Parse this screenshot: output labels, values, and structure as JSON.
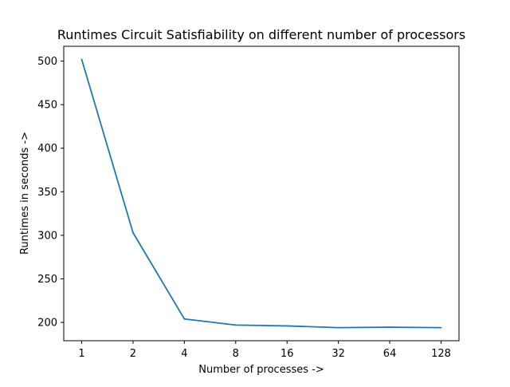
{
  "chart_data": {
    "type": "line",
    "title": "Runtimes Circuit Satisfiability on different number of processors",
    "xlabel": "Number of processes ->",
    "ylabel": "Runtimes in seconds ->",
    "categories": [
      "1",
      "2",
      "4",
      "8",
      "16",
      "32",
      "64",
      "128"
    ],
    "series": [
      {
        "values": [
          502,
          303,
          204,
          197,
          196,
          194,
          194.5,
          194
        ],
        "color": "#1f77b4"
      }
    ],
    "yticks": [
      200,
      250,
      300,
      350,
      400,
      450,
      500
    ],
    "ylim": [
      179,
      517
    ],
    "grid": false,
    "legend": "none"
  }
}
